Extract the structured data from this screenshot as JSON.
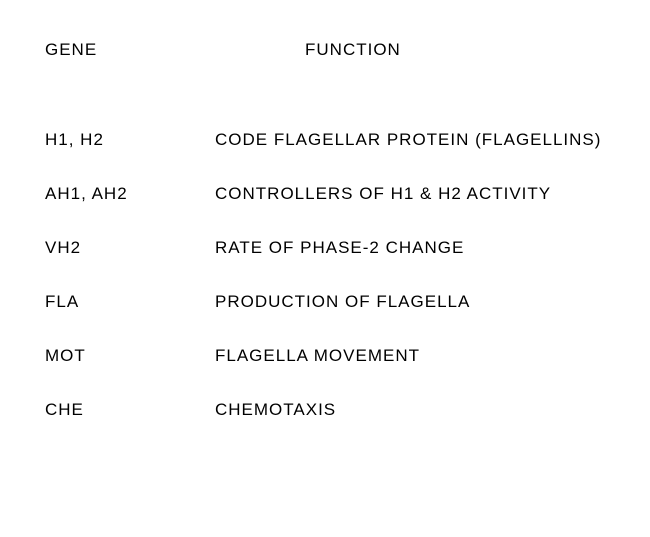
{
  "type": "table",
  "background_color": "#ffffff",
  "text_color": "#000000",
  "font_family": "handwritten-style",
  "font_size_pt": 13,
  "columns": [
    "GENE",
    "FUNCTION"
  ],
  "header": {
    "gene": "GENE",
    "function": "FUNCTION"
  },
  "rows": [
    {
      "gene": "H1, H2",
      "function": "CODE FLAGELLAR PROTEIN (FLAGELLINS)"
    },
    {
      "gene": "AH1, AH2",
      "function": "CONTROLLERS OF H1 & H2 ACTIVITY"
    },
    {
      "gene": "VH2",
      "function": "RATE OF PHASE-2 CHANGE"
    },
    {
      "gene": "FLA",
      "function": "PRODUCTION OF FLAGELLA"
    },
    {
      "gene": "MOT",
      "function": "FLAGELLA MOVEMENT"
    },
    {
      "gene": "CHE",
      "function": "CHEMOTAXIS"
    }
  ]
}
